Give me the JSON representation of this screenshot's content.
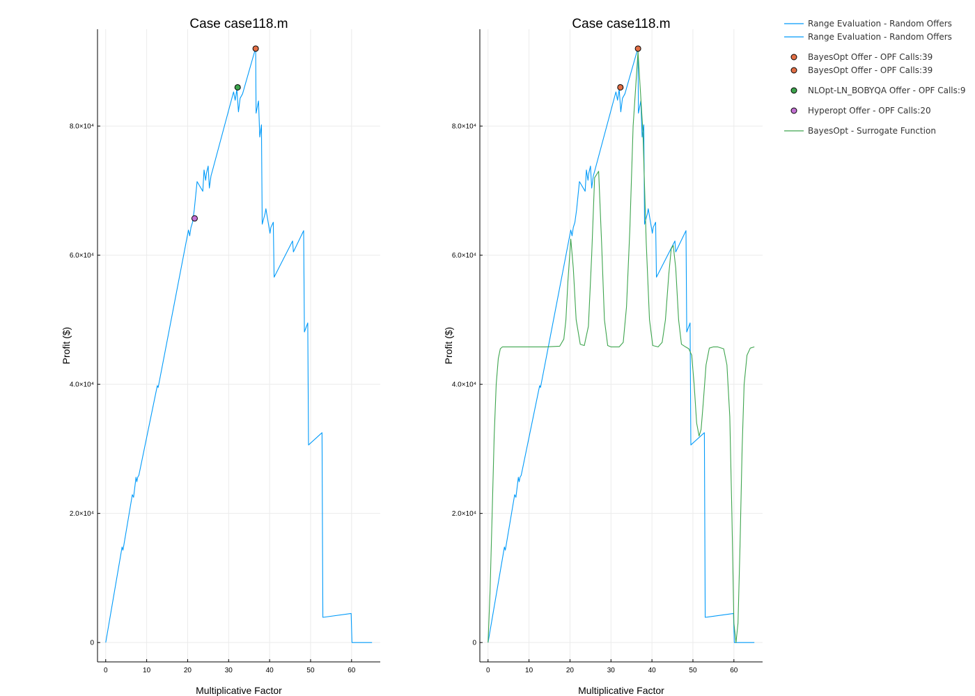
{
  "chart_data": [
    {
      "type": "line",
      "title": "Case case118.m",
      "xlabel": "Multiplicative Factor",
      "ylabel": "Profit ($)",
      "xlim": [
        -2,
        67
      ],
      "ylim": [
        -3000,
        95000
      ],
      "xticks": [
        0,
        10,
        20,
        30,
        40,
        50,
        60
      ],
      "yticks": [
        0,
        20000,
        40000,
        60000,
        80000
      ],
      "ytick_labels": [
        "0",
        "2.0×10⁴",
        "4.0×10⁴",
        "6.0×10⁴",
        "8.0×10⁴"
      ],
      "grid": true,
      "series": [
        {
          "name": "Range Evaluation - Random Offers",
          "kind": "line",
          "color": "#009af9",
          "x": [
            0,
            4.0,
            4.2,
            4.4,
            6.5,
            6.8,
            7.4,
            7.6,
            7.8,
            8.1,
            12.6,
            12.8,
            20.2,
            20.5,
            20.8,
            21.2,
            21.6,
            22.3,
            23.7,
            24.0,
            24.4,
            24.6,
            25.0,
            25.3,
            25.7,
            26.0,
            31.2,
            31.6,
            32.0,
            32.4,
            32.8,
            33.4,
            36.6,
            36.7,
            37.3,
            37.6,
            38.0,
            38.2,
            38.9,
            39.1,
            40.1,
            40.3,
            40.9,
            41.1,
            45.6,
            45.8,
            48.3,
            48.5,
            49.3,
            49.5,
            52.8,
            53.0,
            59.9,
            60.1,
            65.0
          ],
          "y": [
            0,
            14800,
            14300,
            15000,
            22900,
            22500,
            25600,
            24900,
            25600,
            25900,
            39800,
            39500,
            63900,
            63000,
            64300,
            65100,
            67000,
            71400,
            69900,
            73200,
            71600,
            72700,
            73800,
            70400,
            72300,
            73000,
            85300,
            84000,
            85700,
            82200,
            84300,
            85000,
            92100,
            82000,
            83900,
            78300,
            80200,
            64800,
            66500,
            67200,
            63400,
            64300,
            65100,
            56600,
            62200,
            60500,
            63800,
            48100,
            49500,
            30600,
            32500,
            3900,
            4500,
            0,
            0
          ]
        },
        {
          "name": "BayesOpt Offer - OPF Calls:39",
          "kind": "scatter",
          "color": "#e26f46",
          "x": [
            36.6
          ],
          "y": [
            92000
          ]
        },
        {
          "name": "NLOpt-LN_BOBYQA Offer - OPF Calls:9",
          "kind": "scatter",
          "color": "#3da44d",
          "x": [
            32.2
          ],
          "y": [
            86000
          ]
        },
        {
          "name": "Hyperopt Offer - OPF Calls:20",
          "kind": "scatter",
          "color": "#c271d2",
          "x": [
            21.7
          ],
          "y": [
            65700
          ]
        }
      ]
    },
    {
      "type": "line",
      "title": "Case case118.m",
      "xlabel": "Multiplicative Factor",
      "ylabel": "Profit ($)",
      "xlim": [
        -2,
        67
      ],
      "ylim": [
        -3000,
        95000
      ],
      "xticks": [
        0,
        10,
        20,
        30,
        40,
        50,
        60
      ],
      "yticks": [
        0,
        20000,
        40000,
        60000,
        80000
      ],
      "ytick_labels": [
        "0",
        "2.0×10⁴",
        "4.0×10⁴",
        "6.0×10⁴",
        "8.0×10⁴"
      ],
      "grid": true,
      "series": [
        {
          "name": "Range Evaluation - Random Offers",
          "kind": "line",
          "color": "#009af9",
          "x": [
            0,
            4.0,
            4.2,
            4.4,
            6.5,
            6.8,
            7.4,
            7.6,
            7.8,
            8.1,
            12.6,
            12.8,
            20.2,
            20.5,
            20.8,
            21.2,
            21.6,
            22.3,
            23.7,
            24.0,
            24.4,
            24.6,
            25.0,
            25.3,
            25.7,
            26.0,
            31.2,
            31.6,
            32.0,
            32.4,
            32.8,
            33.4,
            36.6,
            36.7,
            37.3,
            37.6,
            38.0,
            38.2,
            38.9,
            39.1,
            40.1,
            40.3,
            40.9,
            41.1,
            45.6,
            45.8,
            48.3,
            48.5,
            49.3,
            49.5,
            52.8,
            53.0,
            59.9,
            60.1,
            65.0
          ],
          "y": [
            0,
            14800,
            14300,
            15000,
            22900,
            22500,
            25600,
            24900,
            25600,
            25900,
            39800,
            39500,
            63900,
            63000,
            64300,
            65100,
            67000,
            71400,
            69900,
            73200,
            71600,
            72700,
            73800,
            70400,
            72300,
            73000,
            85300,
            84000,
            85700,
            82200,
            84300,
            85000,
            92100,
            82000,
            83900,
            78300,
            80200,
            64800,
            66500,
            67200,
            63400,
            64300,
            65100,
            56600,
            62200,
            60500,
            63800,
            48100,
            49500,
            30600,
            32500,
            3900,
            4500,
            0,
            0
          ]
        },
        {
          "name": "BayesOpt Offer - OPF Calls:39",
          "kind": "scatter",
          "color": "#e26f46",
          "x": [
            32.3,
            36.6
          ],
          "y": [
            86000,
            92000
          ]
        },
        {
          "name": "BayesOpt - Surrogate Function",
          "kind": "line",
          "color": "#3da44d",
          "x": [
            0,
            0.5,
            1.0,
            1.5,
            2.0,
            2.5,
            3.0,
            3.5,
            4,
            6,
            10,
            14,
            17.5,
            18.5,
            19.0,
            19.5,
            20.2,
            20.8,
            21.5,
            22.5,
            23.5,
            24.5,
            25.3,
            26.0,
            27.0,
            27.7,
            28.4,
            29.2,
            30.0,
            31.0,
            32.0,
            33.0,
            33.8,
            34.6,
            35.4,
            36.6,
            37.8,
            38.6,
            39.4,
            40.2,
            41.5,
            42.5,
            43.3,
            44.1,
            44.7,
            45.2,
            45.8,
            46.5,
            47.2,
            48.2,
            49.0,
            49.7,
            50.3,
            50.9,
            51.5,
            52.0,
            52.5,
            53.2,
            54.0,
            55.0,
            56.0,
            57.5,
            58.3,
            59.0,
            59.5,
            60.0,
            60.5,
            61.0,
            61.5,
            62.0,
            62.5,
            63.2,
            64.0,
            65.0
          ],
          "y": [
            0,
            8000,
            20000,
            32000,
            40000,
            44000,
            45500,
            45800,
            45800,
            45800,
            45800,
            45800,
            45900,
            47000,
            50000,
            56000,
            62500,
            58000,
            50000,
            46200,
            46000,
            49000,
            60000,
            72000,
            73000,
            62000,
            50000,
            46000,
            45800,
            45800,
            45800,
            46500,
            52000,
            64000,
            80000,
            91500,
            79000,
            62000,
            50000,
            46000,
            45800,
            46500,
            50000,
            57000,
            61000,
            61500,
            58000,
            50000,
            46200,
            45800,
            45500,
            44500,
            40000,
            34000,
            32000,
            33000,
            37000,
            43000,
            45600,
            45800,
            45800,
            45500,
            43000,
            35000,
            20000,
            3000,
            0,
            3000,
            15000,
            30000,
            40000,
            44500,
            45600,
            45800
          ]
        }
      ]
    }
  ],
  "legend": {
    "entries": [
      {
        "label": "Range Evaluation - Random Offers",
        "kind": "line",
        "color": "#009af9"
      },
      {
        "label": "Range Evaluation - Random Offers",
        "kind": "line",
        "color": "#009af9"
      },
      {
        "label": "BayesOpt Offer - OPF Calls:39",
        "kind": "marker",
        "color": "#e26f46"
      },
      {
        "label": "BayesOpt Offer - OPF Calls:39",
        "kind": "marker",
        "color": "#e26f46"
      },
      {
        "label": "NLOpt-LN_BOBYQA Offer - OPF Calls:9",
        "kind": "marker",
        "color": "#3da44d"
      },
      {
        "label": "Hyperopt Offer - OPF Calls:20",
        "kind": "marker",
        "color": "#c271d2"
      },
      {
        "label": "BayesOpt - Surrogate Function",
        "kind": "line",
        "color": "#3da44d"
      }
    ]
  }
}
